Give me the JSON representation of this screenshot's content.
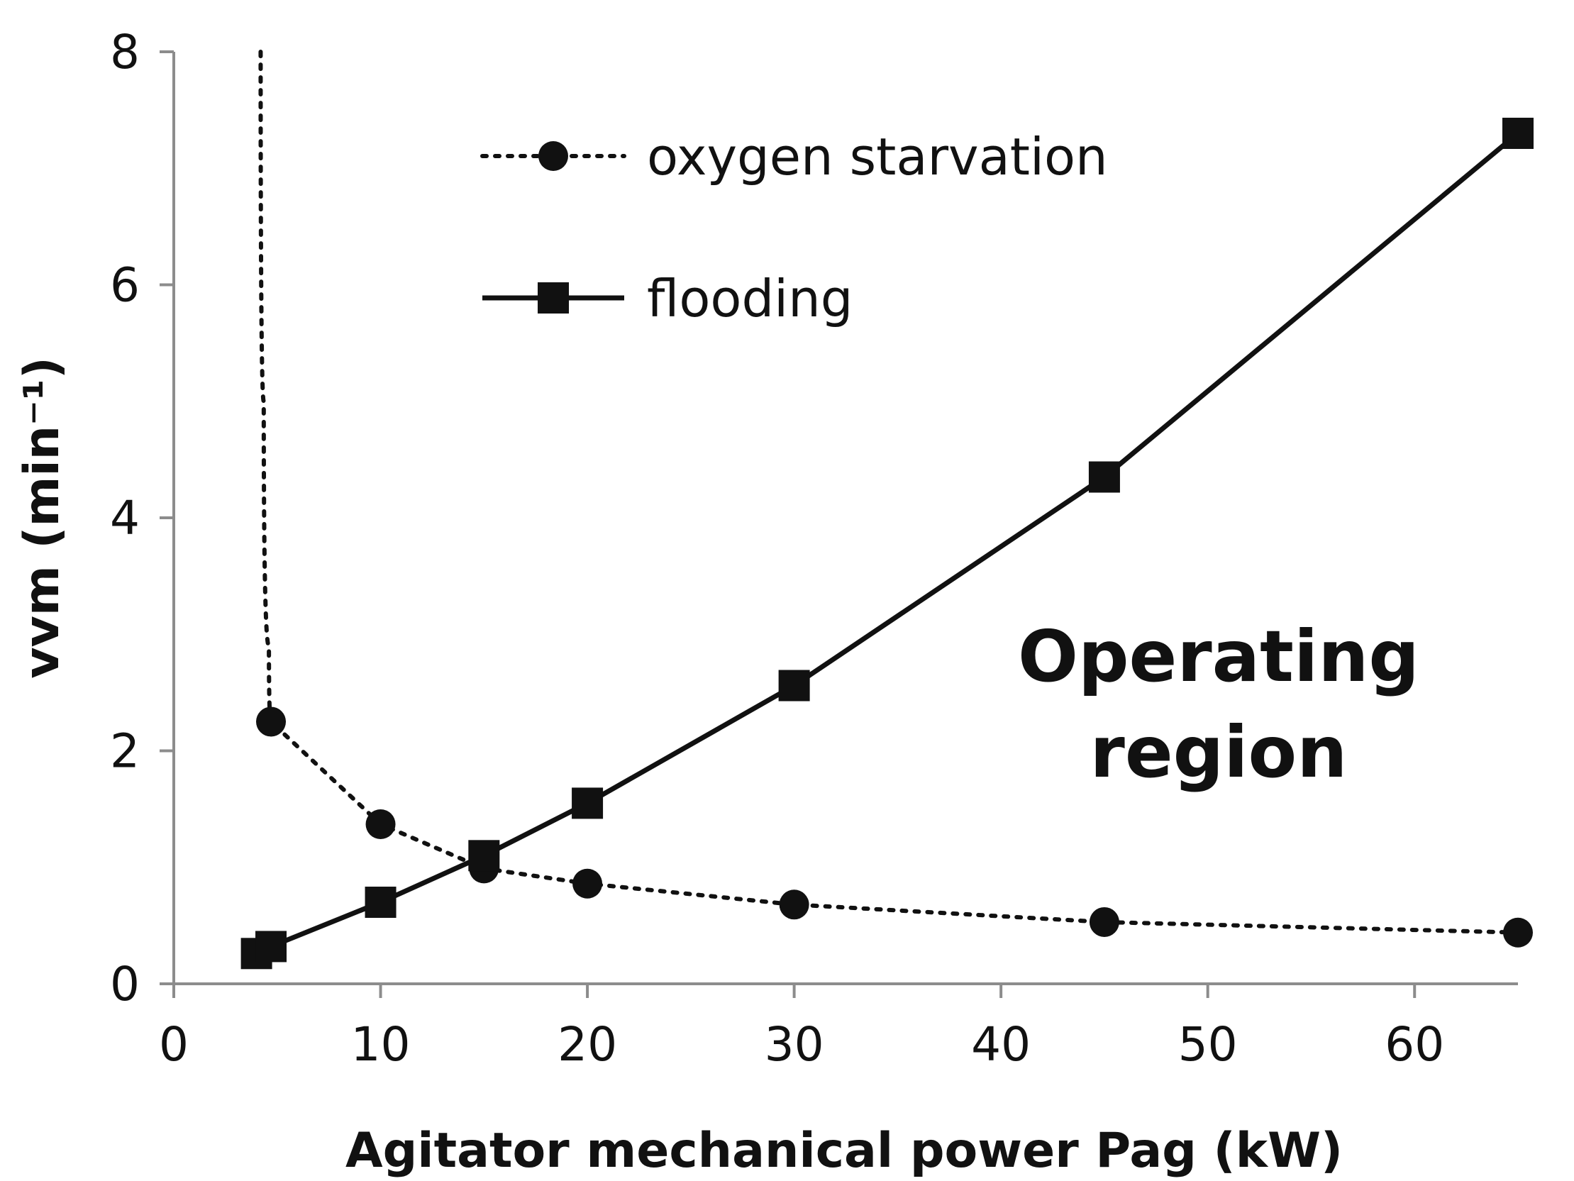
{
  "chart_data": {
    "type": "line",
    "xlabel": "Agitator mechanical power Pag (kW)",
    "ylabel": "vvm (min⁻¹)",
    "xlim": [
      0,
      65
    ],
    "ylim": [
      0,
      8
    ],
    "xticks": [
      "0",
      "10",
      "20",
      "30",
      "40",
      "50",
      "60"
    ],
    "yticks": [
      "0",
      "2",
      "4",
      "6",
      "8"
    ],
    "grid": false,
    "legend_position": "top-center",
    "series": [
      {
        "name": "oxygen starvation",
        "style": "dotted",
        "marker": "circle",
        "curve_top": {
          "x": 4.2,
          "y": 8
        },
        "x": [
          4.7,
          10,
          15,
          20,
          30,
          45,
          65
        ],
        "y": [
          2.25,
          1.37,
          0.99,
          0.86,
          0.68,
          0.53,
          0.44
        ]
      },
      {
        "name": "flooding",
        "style": "solid",
        "marker": "square",
        "x": [
          4,
          4.7,
          10,
          15,
          20,
          30,
          45,
          65
        ],
        "y": [
          0.26,
          0.32,
          0.7,
          1.1,
          1.55,
          2.56,
          4.35,
          7.3
        ]
      }
    ],
    "annotations": [
      "Operating",
      "region"
    ]
  }
}
